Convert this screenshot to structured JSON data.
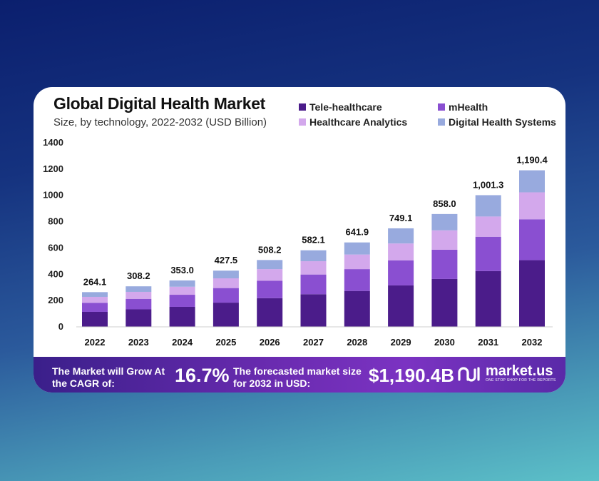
{
  "chart_data": {
    "type": "bar",
    "stacked": true,
    "title": "Global Digital Health Market",
    "subtitle": "Size, by technology, 2022-2032 (USD Billion)",
    "categories": [
      "2022",
      "2023",
      "2024",
      "2025",
      "2026",
      "2027",
      "2028",
      "2029",
      "2030",
      "2031",
      "2032"
    ],
    "series": [
      {
        "name": "Tele-healthcare",
        "color": "#4b1c8a",
        "values": [
          114,
          133,
          152,
          184,
          218,
          248,
          273,
          315,
          364,
          424,
          507
        ]
      },
      {
        "name": "mHealth",
        "color": "#8a4fd1",
        "values": [
          69,
          80,
          92,
          111,
          132,
          150,
          166,
          191,
          223,
          261,
          311
        ]
      },
      {
        "name": "Healthcare Analytics",
        "color": "#d3a8ec",
        "values": [
          45,
          53,
          61,
          74,
          89,
          101,
          111,
          128,
          147,
          154,
          205
        ]
      },
      {
        "name": "Digital Health Systems",
        "color": "#98aade",
        "values": [
          36.1,
          42.2,
          48,
          58.5,
          69.2,
          83.1,
          91.9,
          115.1,
          124,
          162.3,
          167.4
        ]
      }
    ],
    "totals": [
      "264.1",
      "308.2",
      "353.0",
      "427.5",
      "508.2",
      "582.1",
      "641.9",
      "749.1",
      "858.0",
      "1,001.3",
      "1,190.4"
    ],
    "y_ticks": [
      "0",
      "200",
      "400",
      "600",
      "800",
      "1000",
      "1200",
      "1400"
    ],
    "ylim": [
      0,
      1400
    ],
    "xlabel": "",
    "ylabel": "",
    "legend_position": "top-right"
  },
  "footer": {
    "cagr_label": "The Market will Grow At the CAGR of:",
    "cagr_value": "16.7%",
    "market_label": "The forecasted market size for 2032 in USD:",
    "market_value": "$1,190.4B",
    "brand": "market.us",
    "tagline": "ONE STOP SHOP FOR THE REPORTS"
  }
}
